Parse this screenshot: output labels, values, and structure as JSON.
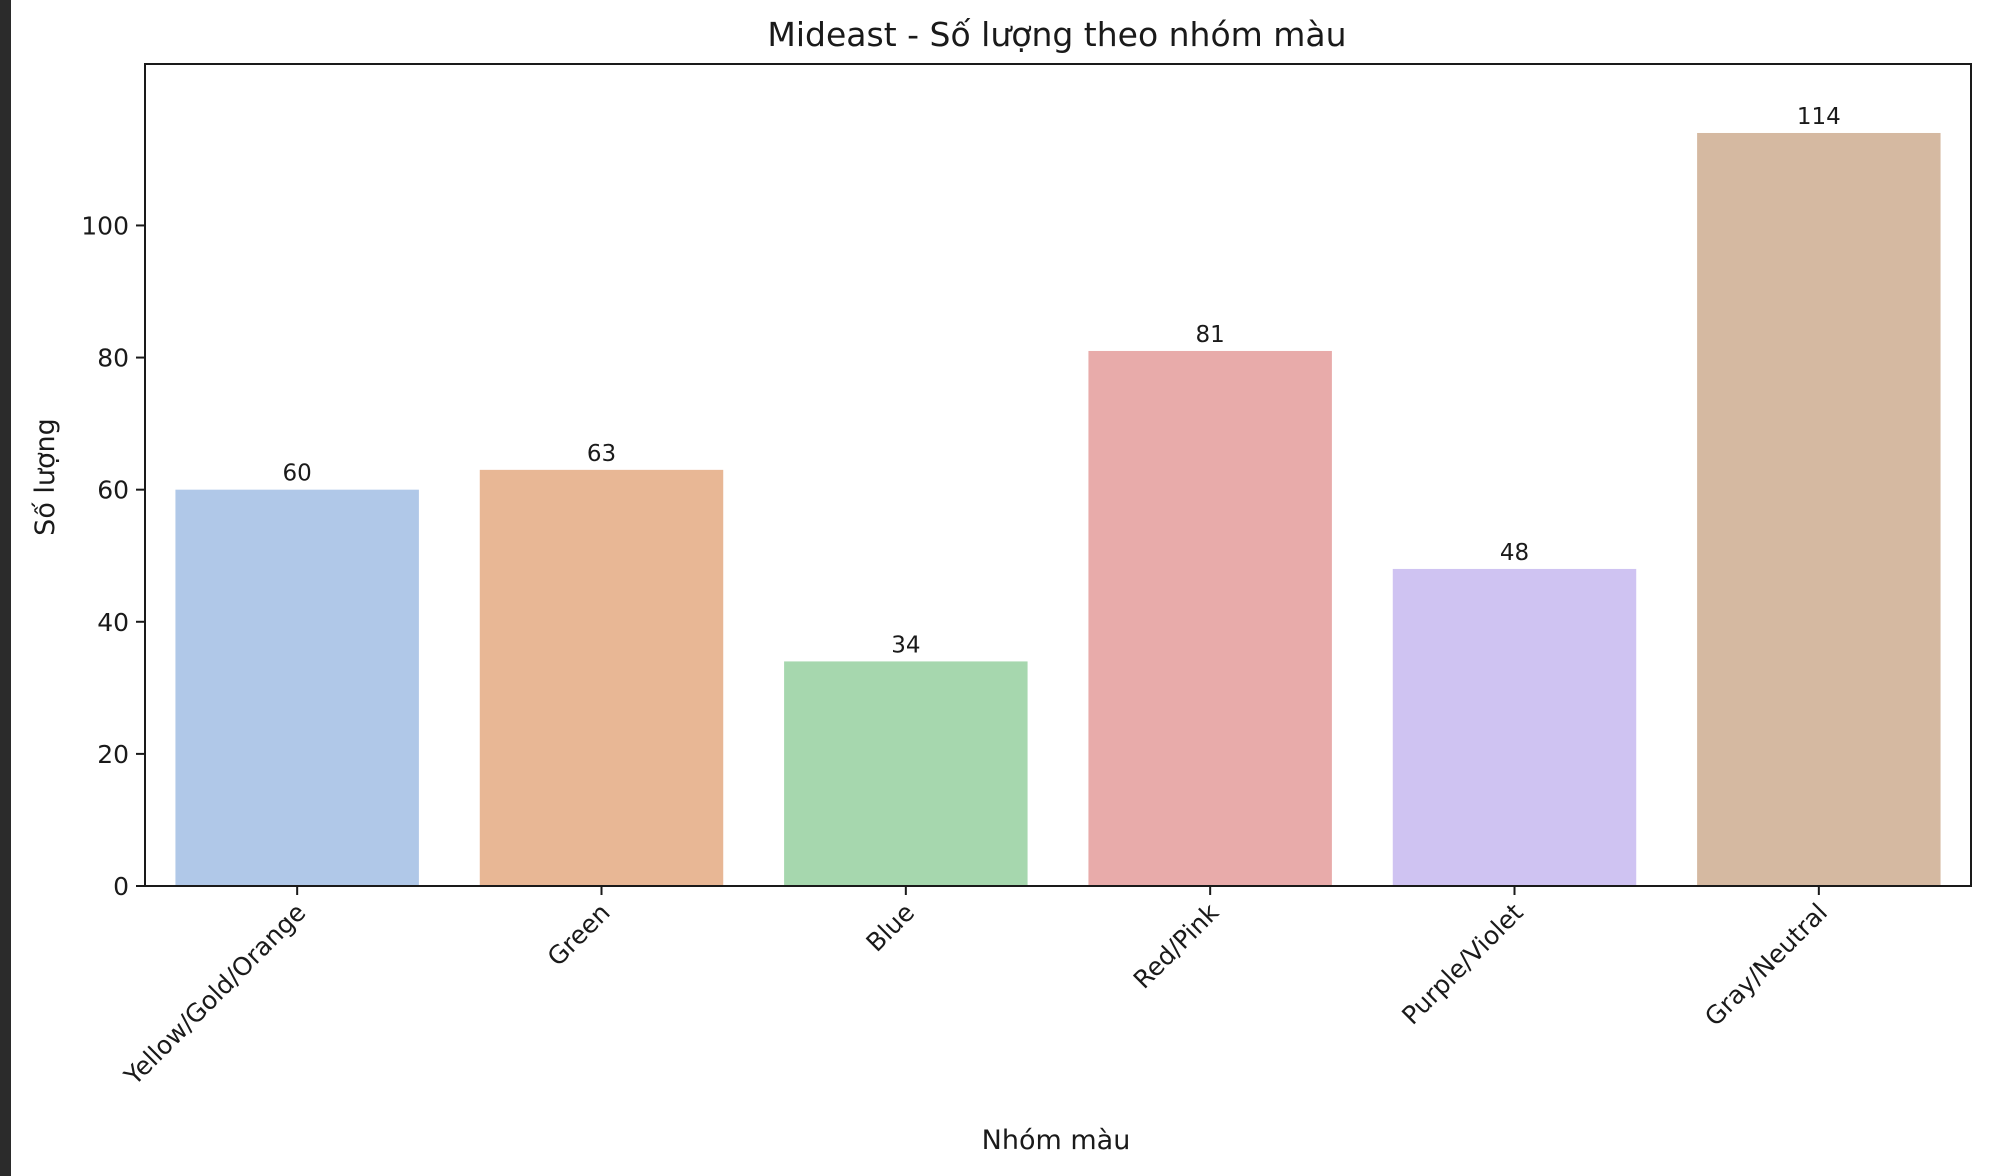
{
  "chart_data": {
    "type": "bar",
    "title": "Mideast - Số lượng theo nhóm màu",
    "xlabel": "Nhóm màu",
    "ylabel": "Số lượng",
    "categories": [
      "Yellow/Gold/Orange",
      "Green",
      "Blue",
      "Red/Pink",
      "Purple/Violet",
      "Gray/Neutral"
    ],
    "values": [
      60,
      63,
      34,
      81,
      48,
      114
    ],
    "data_labels": [
      "60",
      "63",
      "34",
      "81",
      "48",
      "114"
    ],
    "colors": [
      "#b0c8e8",
      "#e8b795",
      "#a6d7ae",
      "#e8abaa",
      "#cfc3f2",
      "#d5b9a1"
    ],
    "ylim": [
      0,
      120
    ],
    "yticks": [
      0,
      20,
      40,
      60,
      80,
      100
    ],
    "ytick_labels": [
      "0",
      "20",
      "40",
      "60",
      "80",
      "100"
    ],
    "grid": false,
    "legend": "none"
  }
}
